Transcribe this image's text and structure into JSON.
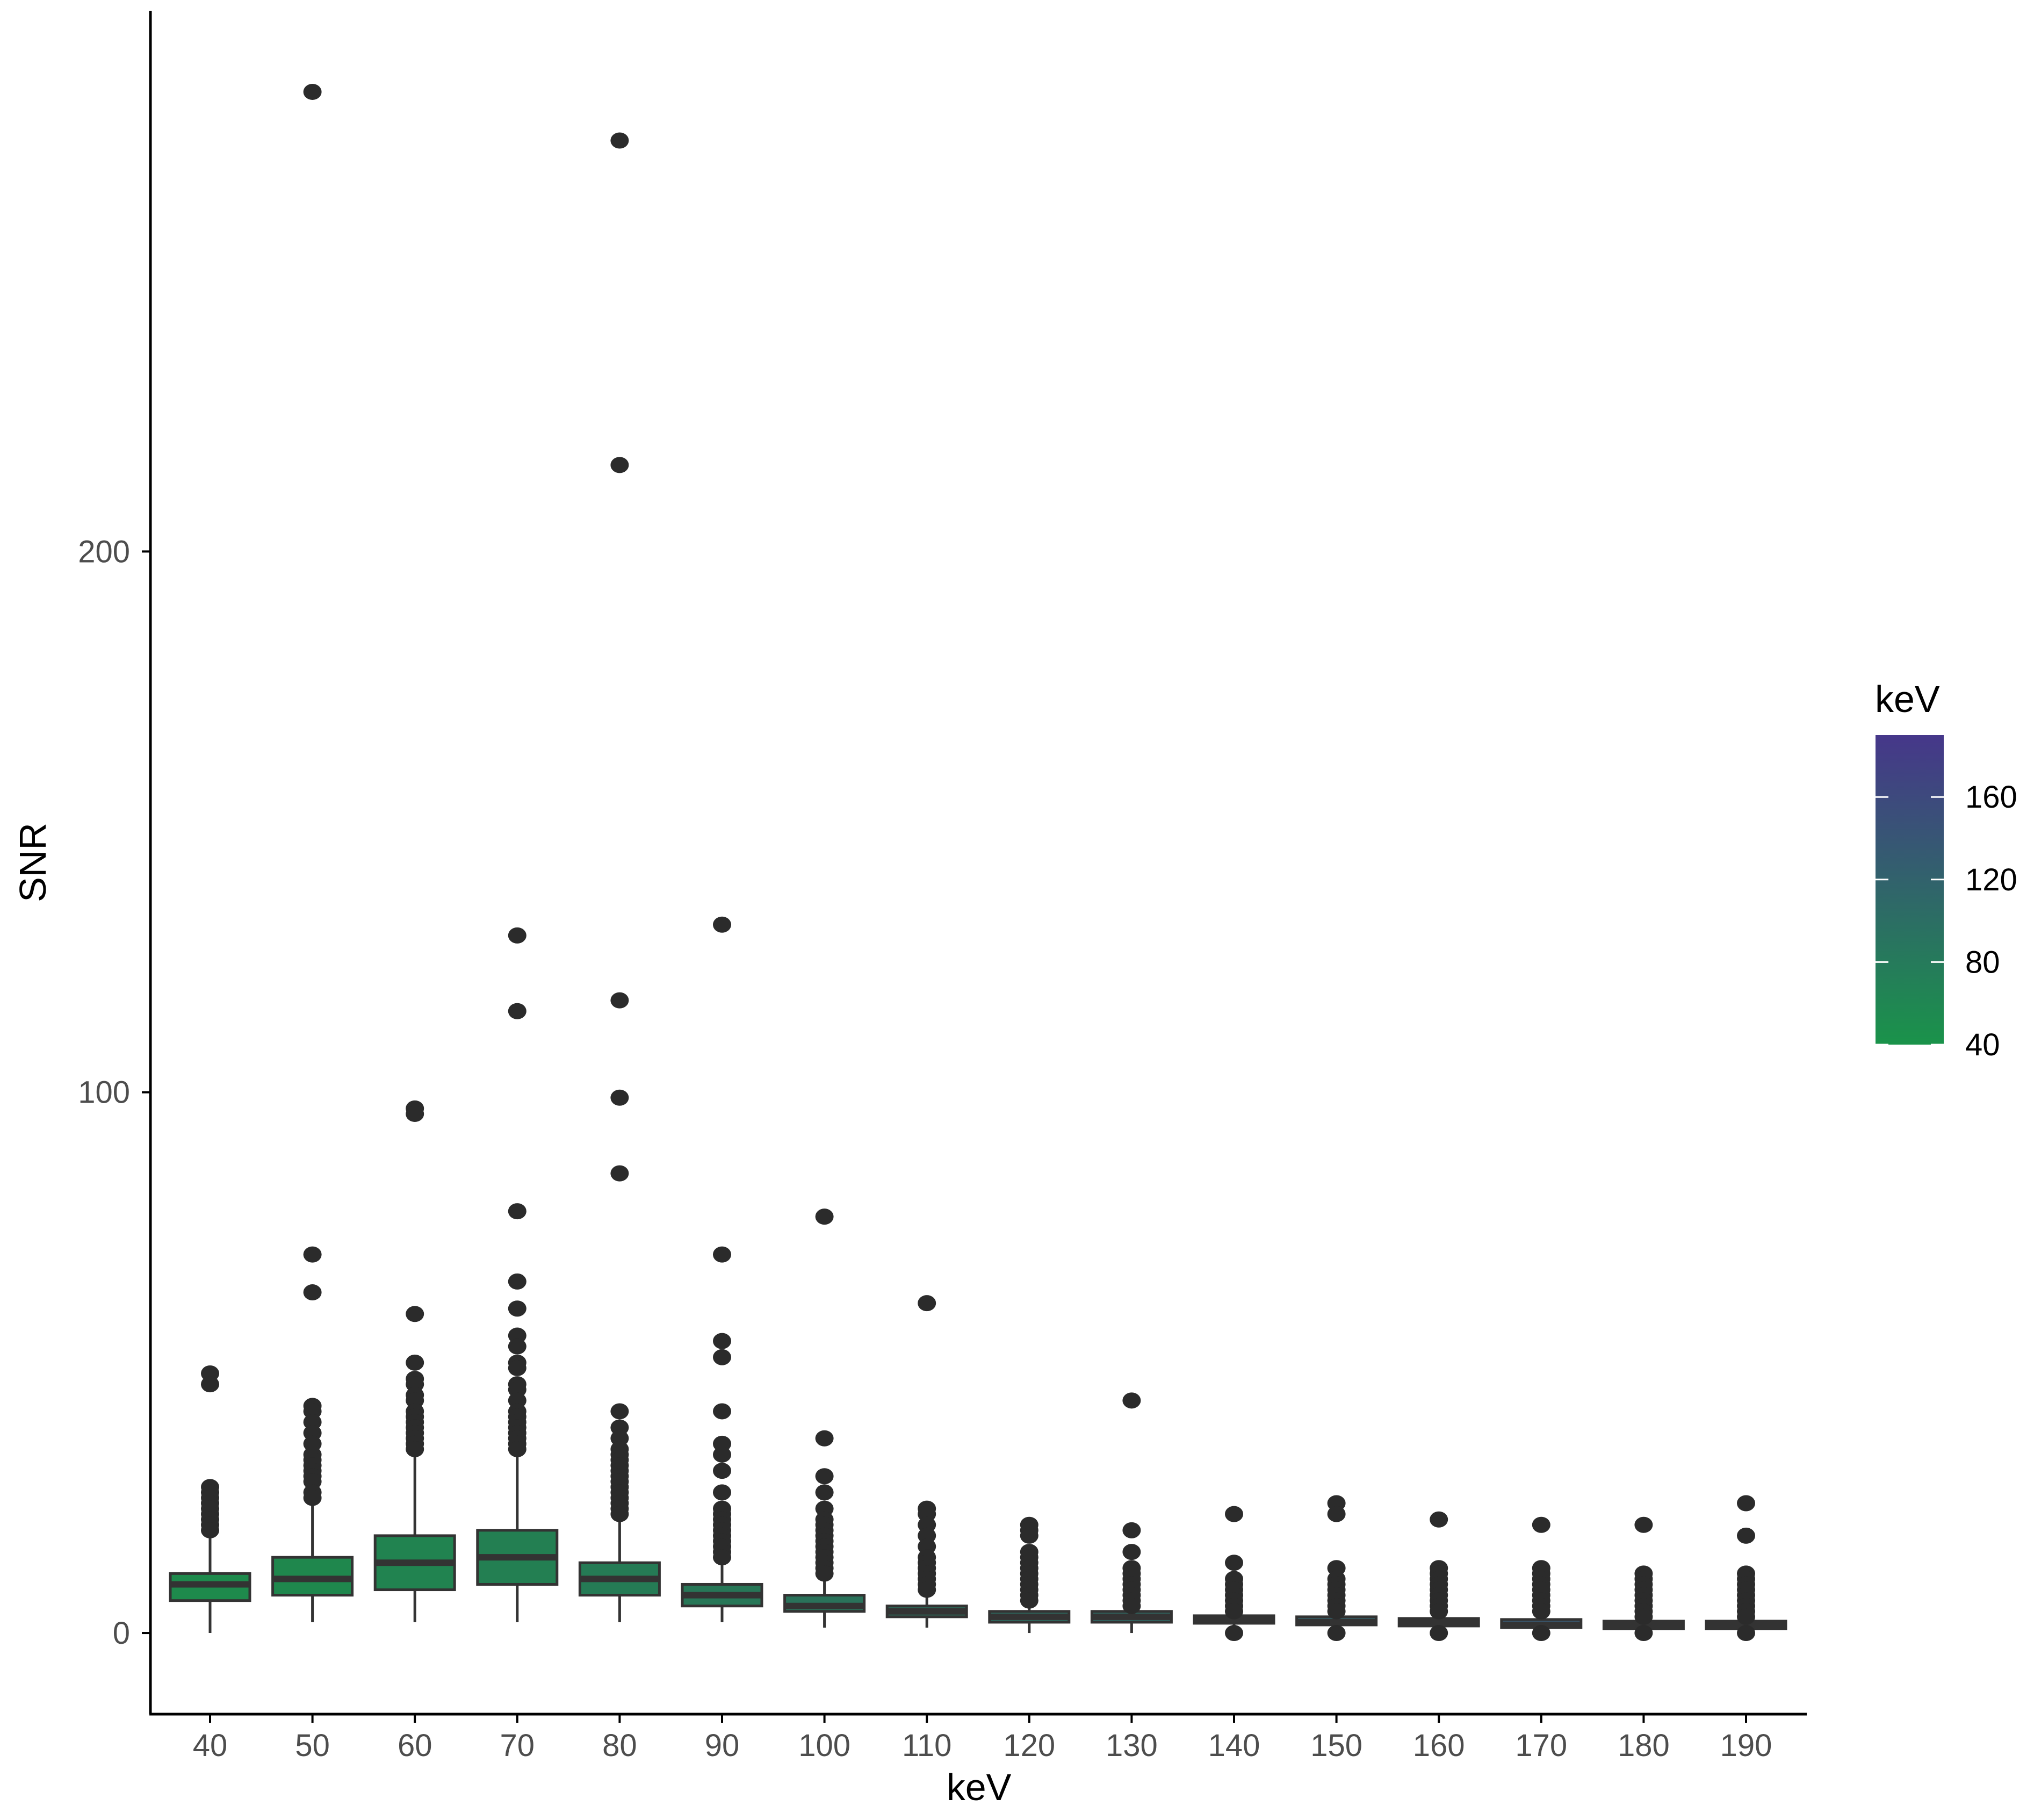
{
  "chart_data": {
    "type": "boxplot",
    "title": "",
    "xlabel": "keV",
    "ylabel": "SNR",
    "ylim": [
      -15,
      300
    ],
    "y_ticks": [
      0,
      100,
      200
    ],
    "categories": [
      "40",
      "50",
      "60",
      "70",
      "80",
      "90",
      "100",
      "110",
      "120",
      "130",
      "140",
      "150",
      "160",
      "170",
      "180",
      "190"
    ],
    "boxes": [
      {
        "q1": 6,
        "median": 9,
        "q3": 11,
        "whisker_low": 0,
        "whisker_high": 18,
        "fill": "#1e8a4c",
        "outliers": [
          48,
          46,
          27,
          26,
          25,
          24,
          23,
          22,
          21,
          20,
          19
        ]
      },
      {
        "q1": 7,
        "median": 10,
        "q3": 14,
        "whisker_low": 2,
        "whisker_high": 24,
        "fill": "#1f874d",
        "outliers": [
          285,
          70,
          63,
          42,
          41,
          39,
          37,
          35,
          33,
          32,
          31,
          30,
          29,
          28,
          26,
          25
        ]
      },
      {
        "q1": 8,
        "median": 13,
        "q3": 18,
        "whisker_low": 2,
        "whisker_high": 33,
        "fill": "#218350",
        "outliers": [
          97,
          96,
          59,
          50,
          47,
          46,
          44,
          43,
          41,
          40,
          39,
          38,
          37,
          36,
          35,
          34
        ]
      },
      {
        "q1": 9,
        "median": 14,
        "q3": 19,
        "whisker_low": 2,
        "whisker_high": 33,
        "fill": "#237f52",
        "outliers": [
          129,
          115,
          78,
          65,
          60,
          55,
          53,
          50,
          49,
          46,
          45,
          43,
          41,
          40,
          39,
          38,
          37,
          36,
          35,
          34
        ]
      },
      {
        "q1": 7,
        "median": 10,
        "q3": 13,
        "whisker_low": 2,
        "whisker_high": 21,
        "fill": "#257b55",
        "outliers": [
          276,
          216,
          117,
          99,
          85,
          41,
          38,
          36,
          34,
          33,
          32,
          31,
          30,
          29,
          28,
          27,
          26,
          25,
          24,
          23,
          22
        ]
      },
      {
        "q1": 5,
        "median": 7,
        "q3": 9,
        "whisker_low": 2,
        "whisker_high": 13,
        "fill": "#277757",
        "outliers": [
          131,
          70,
          54,
          51,
          41,
          35,
          33,
          30,
          26,
          23,
          22,
          21,
          20,
          19,
          18,
          17,
          16,
          15,
          14
        ]
      },
      {
        "q1": 4,
        "median": 5,
        "q3": 7,
        "whisker_low": 1,
        "whisker_high": 10,
        "fill": "#2a725a",
        "outliers": [
          77,
          36,
          29,
          26,
          23,
          21,
          20,
          19,
          18,
          17,
          16,
          15,
          14,
          13,
          12,
          11
        ]
      },
      {
        "q1": 3,
        "median": 4,
        "q3": 5,
        "whisker_low": 1,
        "whisker_high": 7,
        "fill": "#2c6e5c",
        "outliers": [
          61,
          23,
          22,
          20,
          18,
          16,
          14,
          13,
          12,
          11,
          10,
          9,
          8
        ]
      },
      {
        "q1": 2,
        "median": 3,
        "q3": 4,
        "whisker_low": 0,
        "whisker_high": 5,
        "fill": "#2e6a5f",
        "outliers": [
          20,
          19,
          18,
          15,
          14,
          13,
          12,
          11,
          10,
          9,
          8,
          7,
          6
        ]
      },
      {
        "q1": 2,
        "median": 3,
        "q3": 4,
        "whisker_low": 0,
        "whisker_high": 4,
        "fill": "#306661",
        "outliers": [
          43,
          19,
          15,
          12,
          11,
          10,
          9,
          8,
          7,
          6,
          5
        ]
      },
      {
        "q1": 2,
        "median": 2.5,
        "q3": 3,
        "whisker_low": 1,
        "whisker_high": 4,
        "fill": "#326264",
        "outliers": [
          22,
          13,
          10,
          9,
          8,
          7,
          6,
          5,
          4,
          0
        ]
      },
      {
        "q1": 1.5,
        "median": 2,
        "q3": 3,
        "whisker_low": 1,
        "whisker_high": 3,
        "fill": "#345d66",
        "outliers": [
          24,
          22,
          12,
          10,
          9,
          8,
          7,
          6,
          5,
          4,
          0
        ]
      },
      {
        "q1": 1.5,
        "median": 2,
        "q3": 2.5,
        "whisker_low": 1,
        "whisker_high": 3,
        "fill": "#375969",
        "outliers": [
          21,
          12,
          11,
          10,
          9,
          8,
          7,
          6,
          5,
          4,
          0
        ]
      },
      {
        "q1": 1,
        "median": 1.5,
        "q3": 2.5,
        "whisker_low": 0.5,
        "whisker_high": 3,
        "fill": "#39556b",
        "outliers": [
          20,
          12,
          11,
          10,
          9,
          8,
          7,
          6,
          5,
          4,
          0
        ]
      },
      {
        "q1": 1,
        "median": 1.5,
        "q3": 2,
        "whisker_low": 0.5,
        "whisker_high": 3,
        "fill": "#3b516e",
        "outliers": [
          20,
          11,
          10,
          9,
          8,
          7,
          6,
          5,
          4,
          3,
          0
        ]
      },
      {
        "q1": 1,
        "median": 1.5,
        "q3": 2,
        "whisker_low": 0.5,
        "whisker_high": 3,
        "fill": "#3d4c70",
        "outliers": [
          24,
          18,
          11,
          10,
          9,
          8,
          7,
          6,
          5,
          4,
          3,
          0
        ]
      }
    ],
    "legend": {
      "title": "keV",
      "position": "right",
      "type": "colorbar",
      "range": [
        40,
        190
      ],
      "ticks": [
        40,
        80,
        120,
        160
      ],
      "color_low": "#1a934a",
      "color_high": "#46378a"
    },
    "grid": false,
    "colors": {
      "axis": "#000000",
      "outlier": "#2b2b2b",
      "box_outline": "#333333",
      "tick_text": "#4d4d4d"
    }
  }
}
